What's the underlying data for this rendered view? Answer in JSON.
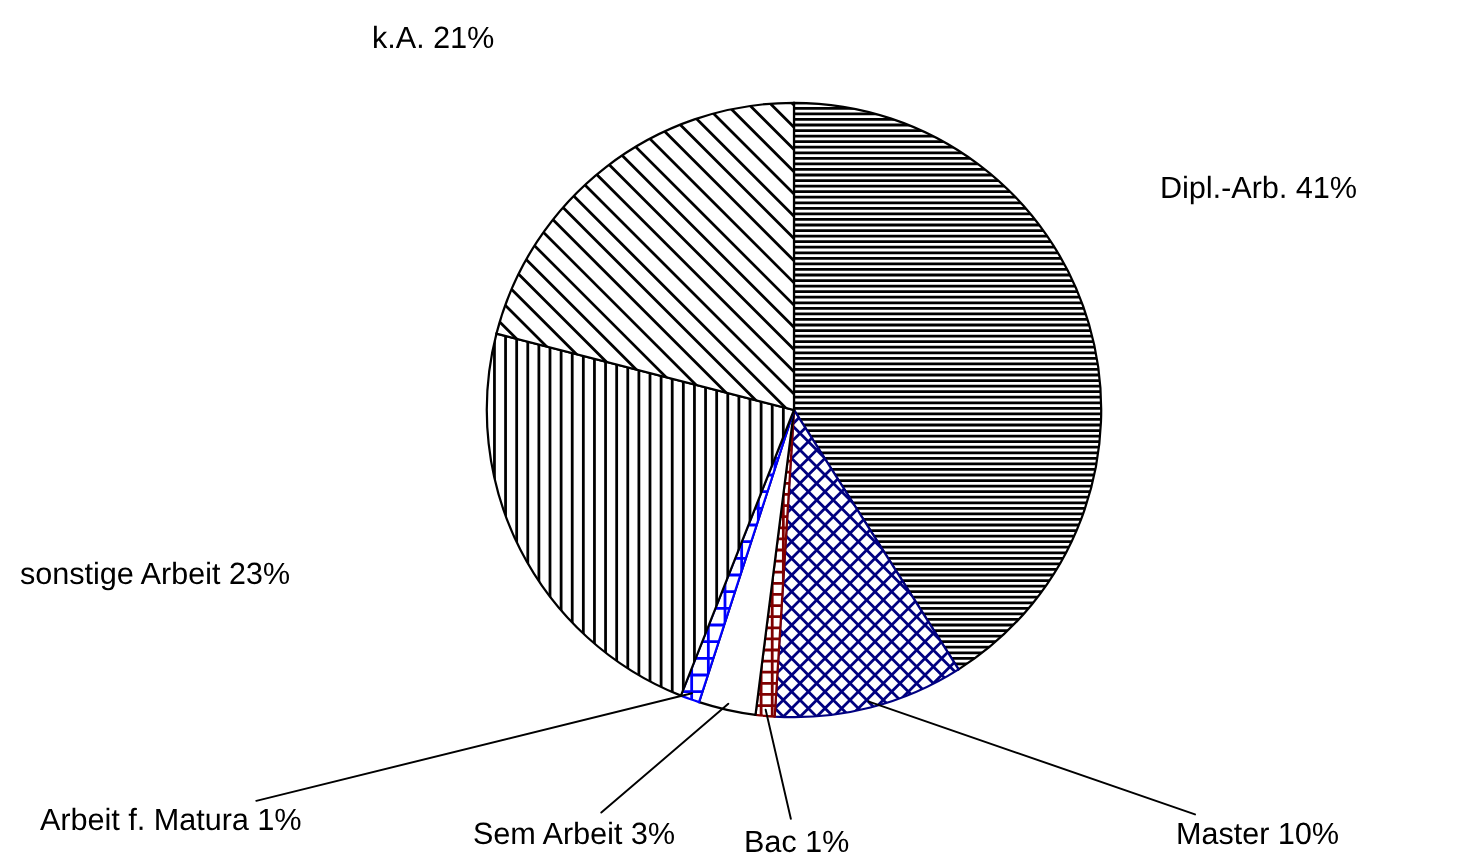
{
  "chart_data": {
    "type": "pie",
    "categories": [
      "Dipl.-Arb.",
      "Master",
      "Bac",
      "Sem Arbeit",
      "Arbeit f. Matura",
      "sonstige Arbeit",
      "k.A."
    ],
    "values": [
      41,
      10,
      1,
      3,
      1,
      23,
      21
    ],
    "value_labels": [
      "41%",
      "10%",
      "1%",
      "3%",
      "1%",
      "23%",
      "21%"
    ],
    "colors": [
      "#000000",
      "#000080",
      "#800000",
      "#000000",
      "#0000ff",
      "#000000",
      "#000000"
    ],
    "legend": false
  }
}
